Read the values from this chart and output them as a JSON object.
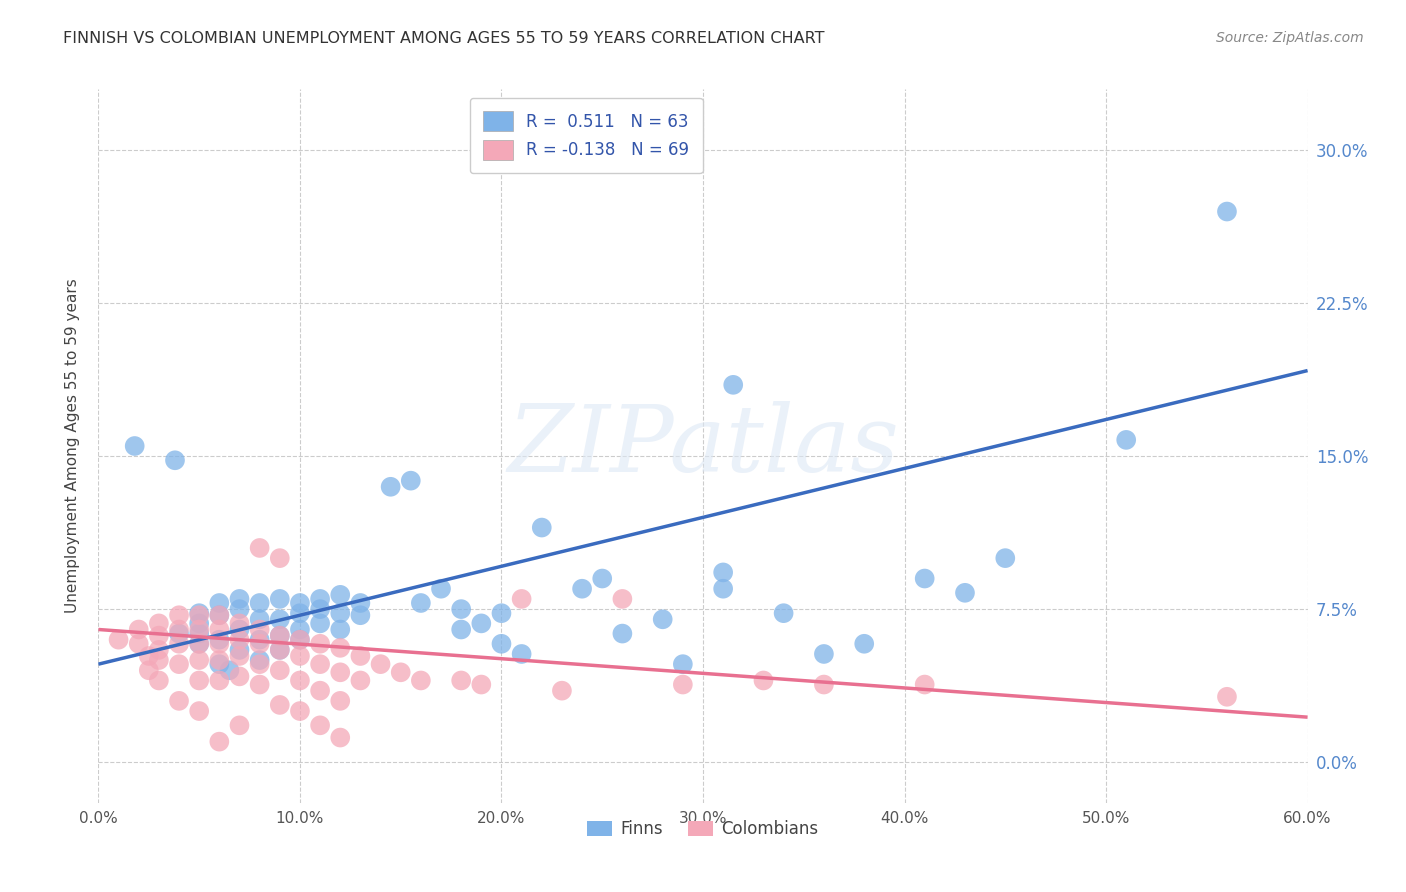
{
  "title": "FINNISH VS COLOMBIAN UNEMPLOYMENT AMONG AGES 55 TO 59 YEARS CORRELATION CHART",
  "source": "Source: ZipAtlas.com",
  "ylabel": "Unemployment Among Ages 55 to 59 years",
  "xlim": [
    0.0,
    0.6
  ],
  "ylim": [
    -0.02,
    0.33
  ],
  "xticks": [
    0.0,
    0.1,
    0.2,
    0.3,
    0.4,
    0.5,
    0.6
  ],
  "xticklabels": [
    "0.0%",
    "10.0%",
    "20.0%",
    "30.0%",
    "40.0%",
    "50.0%",
    "60.0%"
  ],
  "yticks": [
    0.0,
    0.075,
    0.15,
    0.225,
    0.3
  ],
  "yticklabels": [
    "0.0%",
    "7.5%",
    "15.0%",
    "22.5%",
    "30.0%"
  ],
  "grid_color": "#cccccc",
  "background_color": "#ffffff",
  "finn_color": "#7fb3e8",
  "colombian_color": "#f4a8b8",
  "finn_line_color": "#3a6bbf",
  "colombian_line_color": "#e87090",
  "legend_finn_r": "0.511",
  "legend_finn_n": "63",
  "legend_colombian_r": "-0.138",
  "legend_colombian_n": "69",
  "finn_scatter": [
    [
      0.018,
      0.155
    ],
    [
      0.038,
      0.148
    ],
    [
      0.04,
      0.063
    ],
    [
      0.05,
      0.058
    ],
    [
      0.05,
      0.068
    ],
    [
      0.05,
      0.073
    ],
    [
      0.05,
      0.063
    ],
    [
      0.06,
      0.048
    ],
    [
      0.06,
      0.06
    ],
    [
      0.06,
      0.072
    ],
    [
      0.06,
      0.078
    ],
    [
      0.065,
      0.045
    ],
    [
      0.07,
      0.055
    ],
    [
      0.07,
      0.065
    ],
    [
      0.07,
      0.075
    ],
    [
      0.07,
      0.08
    ],
    [
      0.08,
      0.05
    ],
    [
      0.08,
      0.06
    ],
    [
      0.08,
      0.07
    ],
    [
      0.08,
      0.078
    ],
    [
      0.09,
      0.055
    ],
    [
      0.09,
      0.062
    ],
    [
      0.09,
      0.07
    ],
    [
      0.09,
      0.08
    ],
    [
      0.1,
      0.06
    ],
    [
      0.1,
      0.065
    ],
    [
      0.1,
      0.073
    ],
    [
      0.1,
      0.078
    ],
    [
      0.11,
      0.068
    ],
    [
      0.11,
      0.075
    ],
    [
      0.11,
      0.08
    ],
    [
      0.12,
      0.065
    ],
    [
      0.12,
      0.073
    ],
    [
      0.12,
      0.082
    ],
    [
      0.13,
      0.072
    ],
    [
      0.13,
      0.078
    ],
    [
      0.145,
      0.135
    ],
    [
      0.155,
      0.138
    ],
    [
      0.16,
      0.078
    ],
    [
      0.17,
      0.085
    ],
    [
      0.18,
      0.065
    ],
    [
      0.18,
      0.075
    ],
    [
      0.19,
      0.068
    ],
    [
      0.2,
      0.058
    ],
    [
      0.2,
      0.073
    ],
    [
      0.21,
      0.053
    ],
    [
      0.22,
      0.115
    ],
    [
      0.24,
      0.085
    ],
    [
      0.25,
      0.09
    ],
    [
      0.26,
      0.063
    ],
    [
      0.28,
      0.07
    ],
    [
      0.29,
      0.048
    ],
    [
      0.31,
      0.085
    ],
    [
      0.31,
      0.093
    ],
    [
      0.315,
      0.185
    ],
    [
      0.34,
      0.073
    ],
    [
      0.36,
      0.053
    ],
    [
      0.38,
      0.058
    ],
    [
      0.41,
      0.09
    ],
    [
      0.43,
      0.083
    ],
    [
      0.45,
      0.1
    ],
    [
      0.51,
      0.158
    ],
    [
      0.56,
      0.27
    ]
  ],
  "colombian_scatter": [
    [
      0.01,
      0.06
    ],
    [
      0.02,
      0.065
    ],
    [
      0.02,
      0.058
    ],
    [
      0.025,
      0.052
    ],
    [
      0.025,
      0.045
    ],
    [
      0.03,
      0.068
    ],
    [
      0.03,
      0.062
    ],
    [
      0.03,
      0.055
    ],
    [
      0.03,
      0.05
    ],
    [
      0.03,
      0.04
    ],
    [
      0.04,
      0.072
    ],
    [
      0.04,
      0.065
    ],
    [
      0.04,
      0.058
    ],
    [
      0.04,
      0.048
    ],
    [
      0.04,
      0.03
    ],
    [
      0.05,
      0.072
    ],
    [
      0.05,
      0.065
    ],
    [
      0.05,
      0.058
    ],
    [
      0.05,
      0.05
    ],
    [
      0.05,
      0.04
    ],
    [
      0.05,
      0.025
    ],
    [
      0.06,
      0.072
    ],
    [
      0.06,
      0.065
    ],
    [
      0.06,
      0.058
    ],
    [
      0.06,
      0.05
    ],
    [
      0.06,
      0.04
    ],
    [
      0.06,
      0.01
    ],
    [
      0.07,
      0.068
    ],
    [
      0.07,
      0.06
    ],
    [
      0.07,
      0.052
    ],
    [
      0.07,
      0.042
    ],
    [
      0.07,
      0.018
    ],
    [
      0.08,
      0.065
    ],
    [
      0.08,
      0.058
    ],
    [
      0.08,
      0.048
    ],
    [
      0.08,
      0.038
    ],
    [
      0.08,
      0.105
    ],
    [
      0.09,
      0.062
    ],
    [
      0.09,
      0.055
    ],
    [
      0.09,
      0.045
    ],
    [
      0.09,
      0.028
    ],
    [
      0.09,
      0.1
    ],
    [
      0.1,
      0.06
    ],
    [
      0.1,
      0.052
    ],
    [
      0.1,
      0.04
    ],
    [
      0.1,
      0.025
    ],
    [
      0.11,
      0.058
    ],
    [
      0.11,
      0.048
    ],
    [
      0.11,
      0.035
    ],
    [
      0.11,
      0.018
    ],
    [
      0.12,
      0.056
    ],
    [
      0.12,
      0.044
    ],
    [
      0.12,
      0.03
    ],
    [
      0.12,
      0.012
    ],
    [
      0.13,
      0.052
    ],
    [
      0.13,
      0.04
    ],
    [
      0.14,
      0.048
    ],
    [
      0.15,
      0.044
    ],
    [
      0.16,
      0.04
    ],
    [
      0.18,
      0.04
    ],
    [
      0.19,
      0.038
    ],
    [
      0.21,
      0.08
    ],
    [
      0.23,
      0.035
    ],
    [
      0.26,
      0.08
    ],
    [
      0.29,
      0.038
    ],
    [
      0.33,
      0.04
    ],
    [
      0.36,
      0.038
    ],
    [
      0.41,
      0.038
    ],
    [
      0.56,
      0.032
    ]
  ],
  "finn_trendline": [
    [
      0.0,
      0.048
    ],
    [
      0.6,
      0.192
    ]
  ],
  "colombian_trendline": [
    [
      0.0,
      0.065
    ],
    [
      0.6,
      0.022
    ]
  ]
}
